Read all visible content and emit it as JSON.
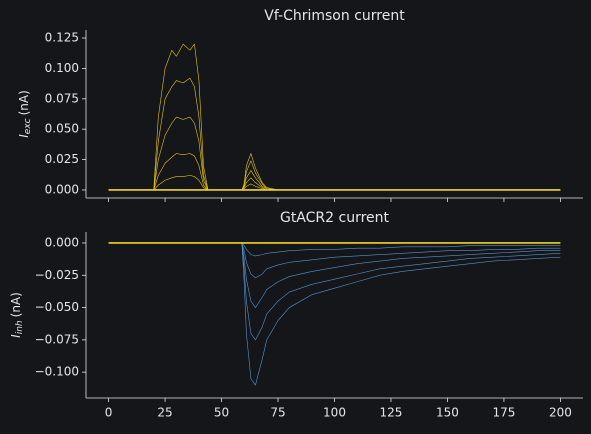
{
  "chart_data": [
    {
      "type": "line",
      "title": "Vf-Chrimson current",
      "ylabel": {
        "symbol": "I",
        "subscript": "exc",
        "unit": "(nA)"
      },
      "x": [
        0,
        19,
        20,
        22,
        25,
        28,
        30,
        33,
        36,
        38,
        40,
        42,
        44,
        59,
        60,
        61,
        63,
        65,
        68,
        70,
        75,
        80,
        90,
        100,
        110,
        120,
        130,
        140,
        150,
        160,
        170,
        180,
        190,
        200
      ],
      "xlim": [
        -10,
        210
      ],
      "ylim": [
        -0.0066,
        0.1316
      ],
      "yticks": [
        {
          "value": 0,
          "label": "0.000"
        },
        {
          "value": 0.025,
          "label": "0.025"
        },
        {
          "value": 0.05,
          "label": "0.050"
        },
        {
          "value": 0.075,
          "label": "0.075"
        },
        {
          "value": 0.1,
          "label": "0.100"
        },
        {
          "value": 0.125,
          "label": "0.125"
        }
      ],
      "sharex": true,
      "series": [
        {
          "color": "#e8c61c",
          "values": [
            0,
            0,
            0,
            0.06,
            0.1,
            0.115,
            0.11,
            0.12,
            0.115,
            0.12,
            0.09,
            0.02,
            0,
            0,
            0.005,
            0.02,
            0.03,
            0.018,
            0.006,
            0.002,
            0,
            0,
            0,
            0,
            0,
            0,
            0,
            0,
            0,
            0,
            0,
            0,
            0,
            0
          ]
        },
        {
          "color": "#e8c61c",
          "values": [
            0,
            0,
            0,
            0.04,
            0.075,
            0.085,
            0.09,
            0.088,
            0.092,
            0.085,
            0.06,
            0.012,
            0,
            0,
            0.004,
            0.015,
            0.024,
            0.014,
            0.005,
            0.001,
            0,
            0,
            0,
            0,
            0,
            0,
            0,
            0,
            0,
            0,
            0,
            0,
            0,
            0
          ]
        },
        {
          "color": "#e8c61c",
          "values": [
            0,
            0,
            0,
            0.025,
            0.045,
            0.055,
            0.06,
            0.058,
            0.06,
            0.055,
            0.04,
            0.008,
            0,
            0,
            0.003,
            0.01,
            0.016,
            0.01,
            0.003,
            0.001,
            0,
            0,
            0,
            0,
            0,
            0,
            0,
            0,
            0,
            0,
            0,
            0,
            0,
            0
          ]
        },
        {
          "color": "#e8c61c",
          "values": [
            0,
            0,
            0,
            0.012,
            0.022,
            0.027,
            0.03,
            0.029,
            0.03,
            0.028,
            0.02,
            0.004,
            0,
            0,
            0.002,
            0.006,
            0.01,
            0.006,
            0.002,
            0,
            0,
            0,
            0,
            0,
            0,
            0,
            0,
            0,
            0,
            0,
            0,
            0,
            0,
            0
          ]
        },
        {
          "color": "#e8c61c",
          "values": [
            0,
            0,
            0,
            0.004,
            0.008,
            0.01,
            0.011,
            0.011,
            0.012,
            0.011,
            0.008,
            0.002,
            0,
            0,
            0.001,
            0.003,
            0.005,
            0.003,
            0.001,
            0,
            0,
            0,
            0,
            0,
            0,
            0,
            0,
            0,
            0,
            0,
            0,
            0,
            0,
            0
          ]
        },
        {
          "color": "#f5d327",
          "width": 1.6,
          "values": [
            0,
            0,
            0,
            0,
            0,
            0,
            0,
            0,
            0,
            0,
            0,
            0,
            0,
            0,
            0,
            0,
            0,
            0,
            0,
            0,
            0,
            0,
            0,
            0,
            0,
            0,
            0,
            0,
            0,
            0,
            0,
            0,
            0,
            0
          ]
        }
      ]
    },
    {
      "type": "line",
      "title": "GtACR2 current",
      "ylabel": {
        "symbol": "I",
        "subscript": "inh",
        "unit": "(nA)"
      },
      "x": [
        0,
        19,
        20,
        22,
        25,
        28,
        30,
        33,
        36,
        38,
        40,
        42,
        44,
        59,
        60,
        61,
        63,
        65,
        68,
        70,
        75,
        80,
        90,
        100,
        110,
        120,
        130,
        140,
        150,
        160,
        170,
        180,
        190,
        200
      ],
      "xlim": [
        -10,
        210
      ],
      "ylim": [
        -0.12,
        0.0085
      ],
      "xticks": [
        0,
        25,
        50,
        75,
        100,
        125,
        150,
        175,
        200
      ],
      "yticks": [
        {
          "value": -0.1,
          "label": "−0.100"
        },
        {
          "value": -0.075,
          "label": "−0.075"
        },
        {
          "value": -0.05,
          "label": "−0.050"
        },
        {
          "value": -0.025,
          "label": "−0.025"
        },
        {
          "value": 0,
          "label": "0.000"
        }
      ],
      "series": [
        {
          "color": "#5b93cc",
          "values": [
            0,
            0,
            0,
            0,
            0,
            0,
            0,
            0,
            0,
            0,
            0,
            0,
            0,
            0,
            -0.03,
            -0.07,
            -0.105,
            -0.11,
            -0.09,
            -0.075,
            -0.06,
            -0.05,
            -0.04,
            -0.035,
            -0.03,
            -0.025,
            -0.022,
            -0.02,
            -0.018,
            -0.016,
            -0.014,
            -0.013,
            -0.012,
            -0.011
          ]
        },
        {
          "color": "#5b93cc",
          "values": [
            0,
            0,
            0,
            0,
            0,
            0,
            0,
            0,
            0,
            0,
            0,
            0,
            0,
            0,
            -0.02,
            -0.045,
            -0.07,
            -0.075,
            -0.065,
            -0.055,
            -0.045,
            -0.038,
            -0.032,
            -0.028,
            -0.024,
            -0.02,
            -0.018,
            -0.016,
            -0.014,
            -0.012,
            -0.011,
            -0.01,
            -0.009,
            -0.008
          ]
        },
        {
          "color": "#5b93cc",
          "values": [
            0,
            0,
            0,
            0,
            0,
            0,
            0,
            0,
            0,
            0,
            0,
            0,
            0,
            0,
            -0.012,
            -0.028,
            -0.045,
            -0.05,
            -0.042,
            -0.036,
            -0.03,
            -0.026,
            -0.022,
            -0.019,
            -0.016,
            -0.014,
            -0.012,
            -0.011,
            -0.01,
            -0.009,
            -0.008,
            -0.007,
            -0.006,
            -0.006
          ]
        },
        {
          "color": "#5b93cc",
          "values": [
            0,
            0,
            0,
            0,
            0,
            0,
            0,
            0,
            0,
            0,
            0,
            0,
            0,
            0,
            -0.006,
            -0.015,
            -0.024,
            -0.027,
            -0.024,
            -0.02,
            -0.017,
            -0.015,
            -0.013,
            -0.011,
            -0.01,
            -0.009,
            -0.008,
            -0.007,
            -0.006,
            -0.006,
            -0.005,
            -0.005,
            -0.004,
            -0.004
          ]
        },
        {
          "color": "#5b93cc",
          "values": [
            0,
            0,
            0,
            0,
            0,
            0,
            0,
            0,
            0,
            0,
            0,
            0,
            0,
            0,
            -0.002,
            -0.005,
            -0.009,
            -0.01,
            -0.009,
            -0.008,
            -0.007,
            -0.006,
            -0.005,
            -0.005,
            -0.004,
            -0.004,
            -0.003,
            -0.003,
            -0.003,
            -0.002,
            -0.002,
            -0.002,
            -0.002,
            -0.002
          ]
        },
        {
          "color": "#f5d327",
          "width": 1.6,
          "values": [
            0,
            0,
            0,
            0,
            0,
            0,
            0,
            0,
            0,
            0,
            0,
            0,
            0,
            0,
            0,
            0,
            0,
            0,
            0,
            0,
            0,
            0,
            0,
            0,
            0,
            0,
            0,
            0,
            0,
            0,
            0,
            0,
            0,
            0
          ]
        }
      ]
    }
  ]
}
